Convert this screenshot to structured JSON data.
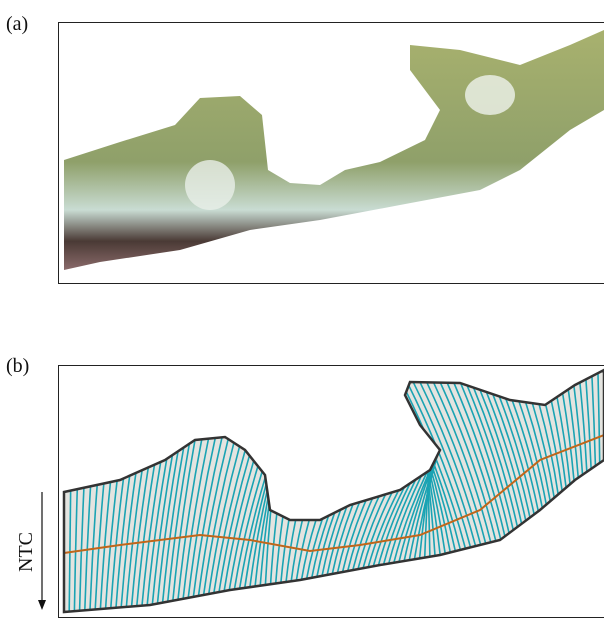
{
  "panels": [
    {
      "label": "(a)"
    },
    {
      "label": "(b)"
    }
  ],
  "axis_label": "NTC"
}
